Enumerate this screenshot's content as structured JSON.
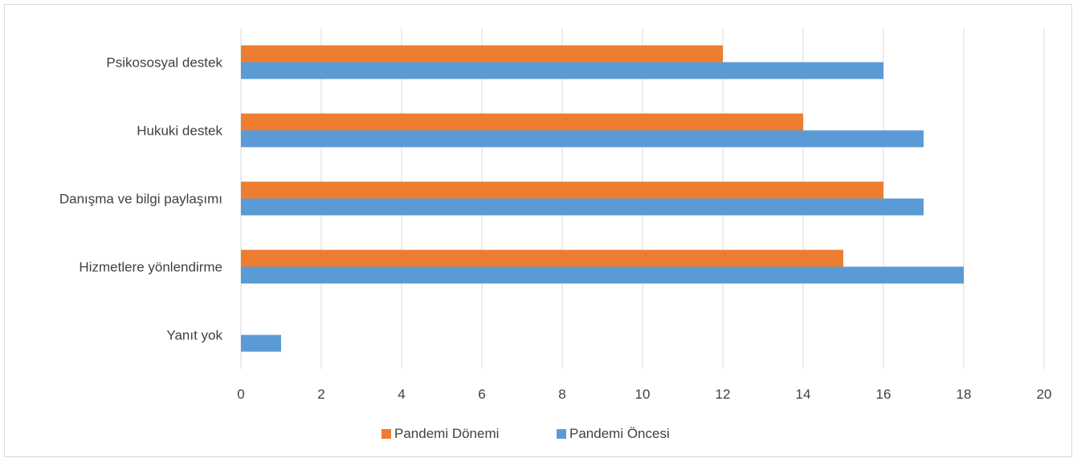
{
  "chart_data": {
    "type": "bar",
    "orientation": "horizontal",
    "categories": [
      "Psikososyal destek",
      "Hukuki destek",
      "Danışma ve bilgi paylaşımı",
      "Hizmetlere yönlendirme",
      "Yanıt yok"
    ],
    "series": [
      {
        "name": "Pandemi Dönemi",
        "color": "#ED7D31",
        "values": [
          12,
          14,
          16,
          15,
          0
        ]
      },
      {
        "name": "Pandemi Öncesi",
        "color": "#5B9BD5",
        "values": [
          16,
          17,
          17,
          18,
          1
        ]
      }
    ],
    "xlim": [
      0,
      20
    ],
    "xticks": [
      "0",
      "2",
      "4",
      "6",
      "8",
      "10",
      "12",
      "14",
      "16",
      "18",
      "20"
    ],
    "grid": true,
    "legend_position": "bottom",
    "title": "",
    "xlabel": "",
    "ylabel": ""
  }
}
